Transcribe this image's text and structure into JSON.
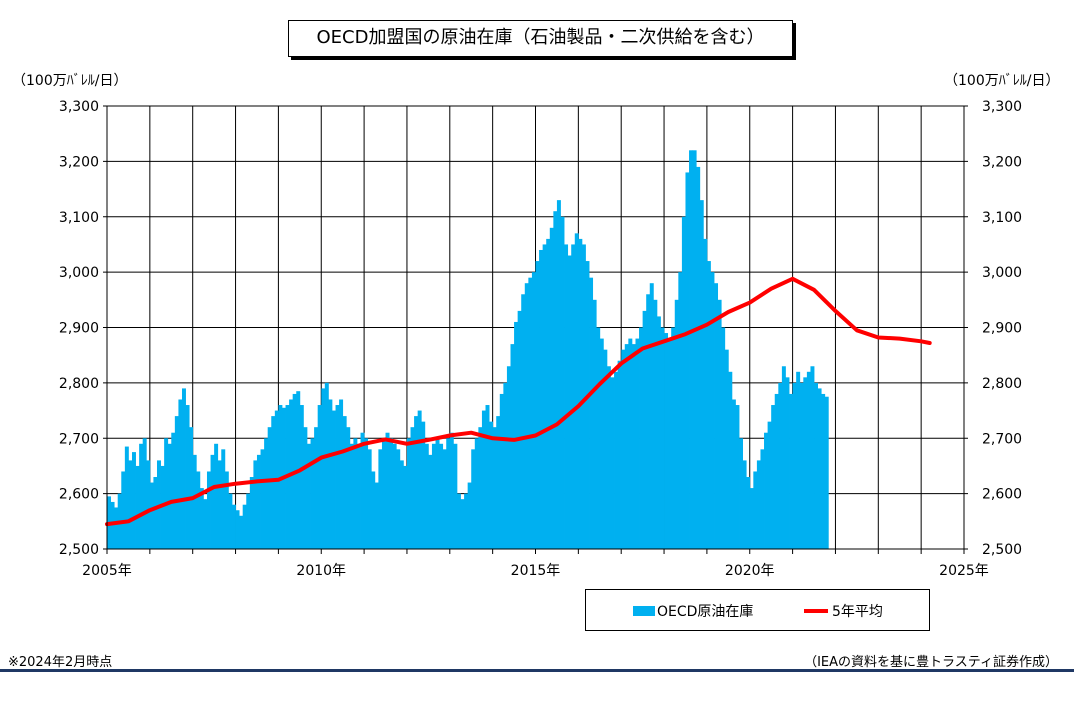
{
  "title": "OECD加盟国の原油在庫（石油製品・二次供給を含む）",
  "unit_left": "（100万ﾊﾞﾚﾙ/日）",
  "unit_right": "（100万ﾊﾞﾚﾙ/日）",
  "footnote_left": "※2024年2月時点",
  "footnote_right": "（IEAの資料を基に豊トラスティ証券作成）",
  "colors": {
    "bars": "#00b0f0",
    "avg_line": "#ff0000",
    "rule": "#1f3864"
  },
  "chart_data": {
    "type": "bar",
    "title": "OECD加盟国の原油在庫（石油製品・二次供給を含む）",
    "ylabel": "（100万ﾊﾞﾚﾙ/日）",
    "y2label": "（100万ﾊﾞﾚﾙ/日）",
    "ylim": [
      2500,
      3300
    ],
    "xlim": [
      2005,
      2025
    ],
    "yticks": [
      "2,500",
      "2,600",
      "2,700",
      "2,800",
      "2,900",
      "3,000",
      "3,100",
      "3,200",
      "3,300"
    ],
    "yticks_right": [
      "2,500",
      "2,600",
      "2,700",
      "2,800",
      "2,900",
      "3,000",
      "3,100",
      "3,200",
      "3,300"
    ],
    "xticks": [
      "2005年",
      "2010年",
      "2015年",
      "2020年",
      "2025年"
    ],
    "grid": true,
    "legend_position": "bottom-right",
    "series": [
      {
        "name": "OECD原油在庫",
        "type": "bar",
        "start": "2005-01",
        "frequency": "monthly",
        "values": [
          2595,
          2585,
          2575,
          2600,
          2640,
          2685,
          2660,
          2675,
          2650,
          2690,
          2700,
          2660,
          2620,
          2630,
          2660,
          2650,
          2700,
          2690,
          2710,
          2740,
          2770,
          2790,
          2760,
          2720,
          2670,
          2640,
          2610,
          2590,
          2640,
          2670,
          2690,
          2660,
          2680,
          2640,
          2600,
          2580,
          2570,
          2560,
          2580,
          2600,
          2630,
          2660,
          2670,
          2680,
          2700,
          2720,
          2740,
          2750,
          2760,
          2755,
          2760,
          2770,
          2780,
          2785,
          2760,
          2720,
          2690,
          2700,
          2720,
          2760,
          2790,
          2800,
          2770,
          2750,
          2760,
          2770,
          2740,
          2720,
          2690,
          2700,
          2690,
          2710,
          2700,
          2680,
          2640,
          2620,
          2680,
          2700,
          2710,
          2700,
          2690,
          2680,
          2660,
          2650,
          2700,
          2720,
          2740,
          2750,
          2730,
          2690,
          2670,
          2690,
          2700,
          2690,
          2680,
          2700,
          2710,
          2690,
          2600,
          2590,
          2600,
          2620,
          2680,
          2700,
          2720,
          2750,
          2760,
          2730,
          2720,
          2740,
          2780,
          2800,
          2830,
          2870,
          2910,
          2930,
          2960,
          2980,
          2990,
          3000,
          3020,
          3040,
          3050,
          3060,
          3080,
          3110,
          3130,
          3100,
          3050,
          3030,
          3050,
          3070,
          3060,
          3050,
          3020,
          2990,
          2950,
          2900,
          2880,
          2860,
          2830,
          2810,
          2820,
          2840,
          2860,
          2870,
          2880,
          2870,
          2880,
          2900,
          2930,
          2960,
          2980,
          2950,
          2920,
          2900,
          2890,
          2880,
          2900,
          2950,
          3000,
          3100,
          3180,
          3220,
          3220,
          3190,
          3130,
          3060,
          3020,
          3000,
          2980,
          2950,
          2900,
          2860,
          2820,
          2770,
          2760,
          2700,
          2660,
          2630,
          2610,
          2640,
          2660,
          2680,
          2710,
          2730,
          2760,
          2780,
          2800,
          2830,
          2810,
          2780,
          2800,
          2820,
          2800,
          2810,
          2820,
          2830,
          2800,
          2790,
          2780,
          2775
        ]
      },
      {
        "name": "5年平均",
        "type": "line",
        "points": [
          [
            2005.0,
            2545
          ],
          [
            2005.5,
            2550
          ],
          [
            2006.0,
            2570
          ],
          [
            2006.5,
            2585
          ],
          [
            2007.0,
            2592
          ],
          [
            2007.5,
            2612
          ],
          [
            2008.0,
            2618
          ],
          [
            2008.5,
            2622
          ],
          [
            2009.0,
            2625
          ],
          [
            2009.5,
            2642
          ],
          [
            2010.0,
            2665
          ],
          [
            2010.5,
            2676
          ],
          [
            2011.0,
            2690
          ],
          [
            2011.5,
            2698
          ],
          [
            2012.0,
            2690
          ],
          [
            2012.5,
            2697
          ],
          [
            2013.0,
            2705
          ],
          [
            2013.5,
            2710
          ],
          [
            2014.0,
            2700
          ],
          [
            2014.5,
            2697
          ],
          [
            2015.0,
            2705
          ],
          [
            2015.5,
            2725
          ],
          [
            2016.0,
            2758
          ],
          [
            2016.5,
            2798
          ],
          [
            2017.0,
            2835
          ],
          [
            2017.5,
            2862
          ],
          [
            2018.0,
            2875
          ],
          [
            2018.5,
            2888
          ],
          [
            2019.0,
            2905
          ],
          [
            2019.5,
            2928
          ],
          [
            2020.0,
            2945
          ],
          [
            2020.5,
            2970
          ],
          [
            2021.0,
            2988
          ],
          [
            2021.5,
            2968
          ],
          [
            2022.0,
            2930
          ],
          [
            2022.5,
            2895
          ],
          [
            2023.0,
            2882
          ],
          [
            2023.5,
            2880
          ],
          [
            2024.0,
            2875
          ],
          [
            2024.2,
            2872
          ]
        ]
      }
    ]
  }
}
